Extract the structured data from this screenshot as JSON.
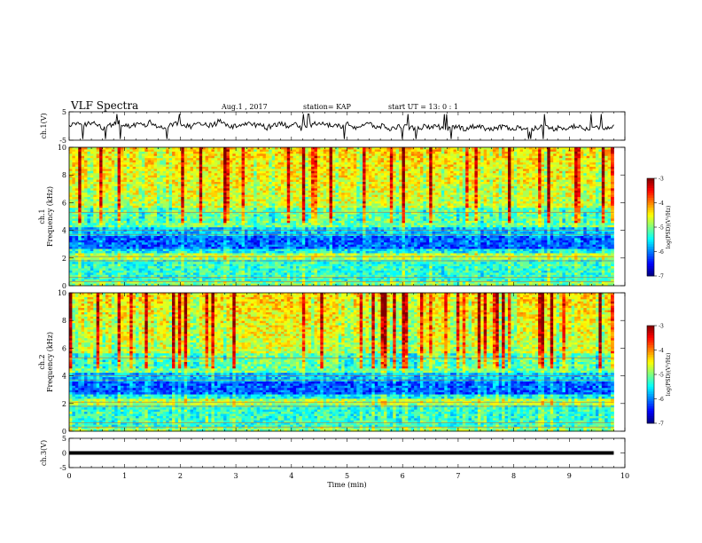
{
  "header": {
    "title": "VLF Spectra",
    "date": "Aug.1  , 2017",
    "station": "station= KAP",
    "start_ut": "start  UT  =   13: 0   : 1"
  },
  "chart_data": [
    {
      "type": "line",
      "panel": "ch1-waveform",
      "ylabel": "ch.1(V)",
      "ylim": [
        -5,
        5
      ],
      "yticks": [
        "5",
        "-5"
      ],
      "xlim": [
        0,
        10
      ],
      "x_extent_min": 9.8,
      "series": [
        {
          "values": [
            0.6,
            0.8,
            -0.2,
            1.2,
            0.4,
            -0.6,
            0.2,
            1.6,
            0.6,
            -0.4,
            0.8,
            0.2,
            1.4,
            0.0,
            -0.8,
            0.4,
            1.0,
            0.2,
            -0.2,
            1.2,
            0.6,
            0.0,
            1.8,
            0.4,
            -0.4,
            0.6,
            1.0,
            0.2,
            0.8,
            -0.6,
            0.4,
            1.2,
            0.0,
            0.6,
            -0.8,
            0.2,
            0.8,
            1.4,
            0.4,
            -0.2,
            0.0,
            0.6,
            -0.6,
            0.2,
            0.8,
            -0.4,
            0.0,
            -1.2,
            -0.4,
            0.2,
            -0.6,
            -1.0,
            -0.2,
            -0.8,
            0.0,
            -1.4,
            -0.6,
            -0.2,
            -1.0,
            -0.4,
            0.2,
            -0.8,
            -1.2,
            -0.6,
            -0.2,
            -1.0,
            -0.4,
            -1.4,
            -0.8,
            -0.2,
            -0.6,
            -1.0,
            -0.4,
            -0.8,
            0.0,
            -0.6,
            -1.2,
            -0.4,
            -0.8,
            -0.2
          ]
        }
      ]
    },
    {
      "type": "heatmap",
      "panel": "ch1-spectrogram",
      "ylabel": "ch.1 Frequency (kHz)",
      "ylim": [
        0,
        10
      ],
      "yticks": [
        "0",
        "2",
        "4",
        "6",
        "8",
        "10"
      ],
      "xlim": [
        0,
        10
      ],
      "colorbar": {
        "label": "log(PSD)(V²/Hz)",
        "range": [
          -7,
          -3
        ],
        "ticks": [
          "-3",
          "-4",
          "-5",
          "-6",
          "-7"
        ]
      }
    },
    {
      "type": "heatmap",
      "panel": "ch2-spectrogram",
      "ylabel": "ch.2 Frequency (kHz)",
      "ylim": [
        0,
        10
      ],
      "yticks": [
        "0",
        "2",
        "4",
        "6",
        "8",
        "10"
      ],
      "xlim": [
        0,
        10
      ],
      "colorbar": {
        "label": "log(PSD)(V²/Hz)",
        "range": [
          -7,
          -3
        ],
        "ticks": [
          "-3",
          "-4",
          "-5",
          "-6",
          "-7"
        ]
      }
    },
    {
      "type": "line",
      "panel": "ch3-waveform",
      "ylabel": "ch.3(V)",
      "ylim": [
        -5,
        5
      ],
      "yticks": [
        "5",
        "0",
        "-5"
      ],
      "xlim": [
        0,
        10
      ],
      "x_extent_min": 9.8,
      "series": [
        {
          "values": [
            0,
            0
          ]
        }
      ]
    }
  ],
  "xaxis": {
    "label": "Time  (min)",
    "ticks": [
      "0",
      "1",
      "2",
      "3",
      "4",
      "5",
      "6",
      "7",
      "8",
      "9",
      "10"
    ],
    "range": [
      0,
      10
    ]
  }
}
